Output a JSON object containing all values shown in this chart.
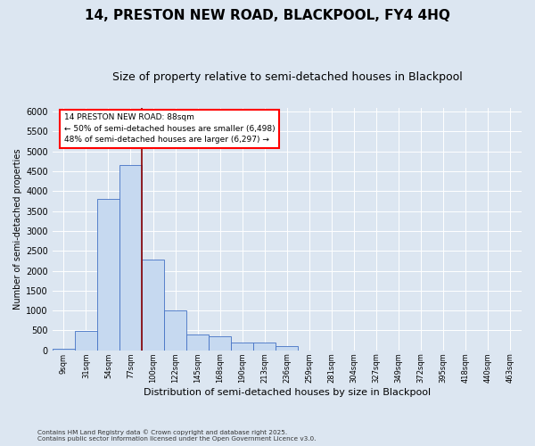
{
  "title": "14, PRESTON NEW ROAD, BLACKPOOL, FY4 4HQ",
  "subtitle": "Size of property relative to semi-detached houses in Blackpool",
  "xlabel": "Distribution of semi-detached houses by size in Blackpool",
  "ylabel": "Number of semi-detached properties",
  "footer_line1": "Contains HM Land Registry data © Crown copyright and database right 2025.",
  "footer_line2": "Contains public sector information licensed under the Open Government Licence v3.0.",
  "categories": [
    "9sqm",
    "31sqm",
    "54sqm",
    "77sqm",
    "100sqm",
    "122sqm",
    "145sqm",
    "168sqm",
    "190sqm",
    "213sqm",
    "236sqm",
    "259sqm",
    "281sqm",
    "304sqm",
    "327sqm",
    "349sqm",
    "372sqm",
    "395sqm",
    "418sqm",
    "440sqm",
    "463sqm"
  ],
  "bar_heights": [
    50,
    490,
    3800,
    4650,
    2280,
    1000,
    400,
    355,
    205,
    205,
    100,
    0,
    0,
    0,
    0,
    0,
    0,
    0,
    0,
    0,
    0
  ],
  "bar_color": "#c6d9f0",
  "bar_edge_color": "#4472c4",
  "annotation_title": "14 PRESTON NEW ROAD: 88sqm",
  "annotation_line1": "← 50% of semi-detached houses are smaller (6,498)",
  "annotation_line2": "48% of semi-detached houses are larger (6,297) →",
  "vline_color": "#8b0000",
  "ylim": [
    0,
    6100
  ],
  "yticks": [
    0,
    500,
    1000,
    1500,
    2000,
    2500,
    3000,
    3500,
    4000,
    4500,
    5000,
    5500,
    6000
  ],
  "background_color": "#dce6f1",
  "plot_bg_color": "#dce6f1",
  "grid_color": "#ffffff",
  "title_fontsize": 11,
  "subtitle_fontsize": 9
}
